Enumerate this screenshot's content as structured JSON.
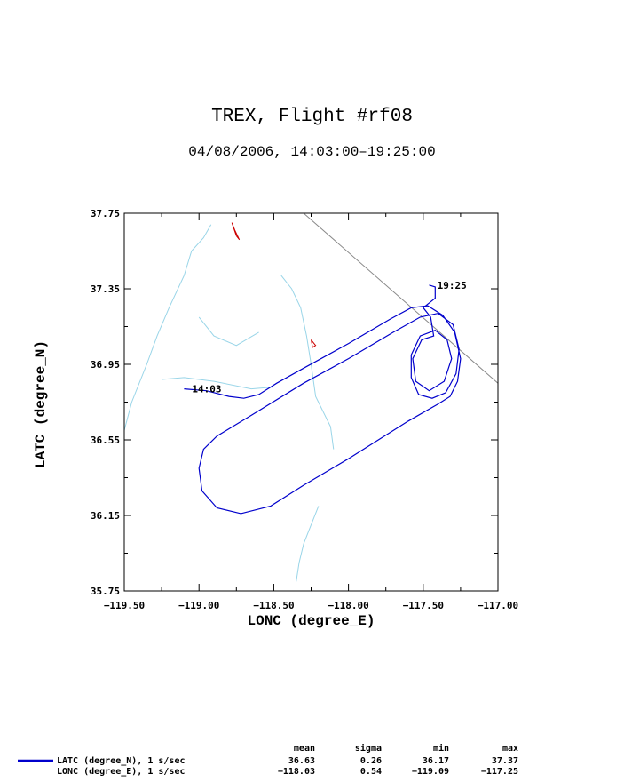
{
  "chart_data": {
    "type": "line",
    "title": "TREX, Flight #rf08",
    "subtitle": "04/08/2006, 14:03:00–19:25:00",
    "xlabel": "LONC (degree_E)",
    "ylabel": "LATC (degree_N)",
    "xlim": [
      -119.5,
      -117.0
    ],
    "ylim": [
      35.75,
      37.75
    ],
    "x_ticks": [
      "−119.50",
      "−119.00",
      "−118.50",
      "−118.00",
      "−117.50",
      "−117.00"
    ],
    "y_ticks": [
      "36.15",
      "36.55",
      "36.95",
      "37.35",
      "37.75"
    ],
    "y_ticks_with_bottom": [
      "35.75",
      "36.15",
      "36.55",
      "36.95",
      "37.35",
      "37.75"
    ],
    "grid": false,
    "series": [
      {
        "name": "LATC (degree_N), 1 s/sec",
        "color": "#0000cc",
        "points": [
          [
            -119.1,
            36.82
          ],
          [
            -118.95,
            36.81
          ],
          [
            -118.8,
            36.78
          ],
          [
            -118.7,
            36.77
          ],
          [
            -118.6,
            36.79
          ],
          [
            -118.48,
            36.85
          ],
          [
            -118.3,
            36.93
          ],
          [
            -118.0,
            37.06
          ],
          [
            -117.72,
            37.19
          ],
          [
            -117.58,
            37.25
          ],
          [
            -117.47,
            37.26
          ],
          [
            -117.37,
            37.21
          ],
          [
            -117.29,
            37.12
          ],
          [
            -117.25,
            36.98
          ],
          [
            -117.27,
            36.86
          ],
          [
            -117.32,
            36.78
          ],
          [
            -117.4,
            36.74
          ],
          [
            -117.6,
            36.65
          ],
          [
            -118.0,
            36.45
          ],
          [
            -118.3,
            36.31
          ],
          [
            -118.52,
            36.2
          ],
          [
            -118.72,
            36.16
          ],
          [
            -118.88,
            36.19
          ],
          [
            -118.98,
            36.28
          ],
          [
            -119.0,
            36.4
          ],
          [
            -118.97,
            36.5
          ],
          [
            -118.88,
            36.57
          ],
          [
            -118.65,
            36.68
          ],
          [
            -118.3,
            36.85
          ],
          [
            -118.0,
            36.98
          ],
          [
            -117.7,
            37.12
          ],
          [
            -117.52,
            37.2
          ],
          [
            -117.4,
            37.22
          ],
          [
            -117.3,
            37.16
          ],
          [
            -117.26,
            37.03
          ],
          [
            -117.28,
            36.9
          ],
          [
            -117.35,
            36.8
          ],
          [
            -117.44,
            36.77
          ],
          [
            -117.53,
            36.79
          ],
          [
            -117.58,
            36.88
          ],
          [
            -117.58,
            37.0
          ],
          [
            -117.52,
            37.1
          ],
          [
            -117.42,
            37.13
          ],
          [
            -117.34,
            37.08
          ],
          [
            -117.31,
            36.98
          ],
          [
            -117.36,
            36.86
          ],
          [
            -117.46,
            36.81
          ],
          [
            -117.55,
            36.86
          ],
          [
            -117.57,
            36.98
          ],
          [
            -117.51,
            37.08
          ],
          [
            -117.43,
            37.1
          ],
          [
            -117.45,
            37.2
          ],
          [
            -117.5,
            37.25
          ],
          [
            -117.42,
            37.3
          ],
          [
            -117.42,
            37.36
          ],
          [
            -117.46,
            37.37
          ]
        ]
      },
      {
        "name": "LONC (degree_E), 1 s/sec",
        "color": "#0000cc",
        "points": []
      }
    ],
    "annotations": [
      {
        "text": "14:03",
        "x": -119.07,
        "y": 36.82
      },
      {
        "text": "19:25",
        "x": -117.43,
        "y": 37.37
      }
    ],
    "background_lines": [
      {
        "kind": "river",
        "color": "#99d5e8",
        "points": [
          [
            -118.92,
            37.69
          ],
          [
            -118.97,
            37.62
          ],
          [
            -119.05,
            37.55
          ],
          [
            -119.1,
            37.42
          ],
          [
            -119.2,
            37.25
          ],
          [
            -119.28,
            37.1
          ],
          [
            -119.35,
            36.95
          ],
          [
            -119.45,
            36.75
          ],
          [
            -119.5,
            36.6
          ]
        ]
      },
      {
        "kind": "river",
        "color": "#99d5e8",
        "points": [
          [
            -119.25,
            36.87
          ],
          [
            -119.1,
            36.88
          ],
          [
            -118.9,
            36.86
          ],
          [
            -118.65,
            36.82
          ],
          [
            -118.5,
            36.83
          ]
        ]
      },
      {
        "kind": "river",
        "color": "#99d5e8",
        "points": [
          [
            -118.45,
            37.42
          ],
          [
            -118.38,
            37.35
          ],
          [
            -118.32,
            37.25
          ],
          [
            -118.28,
            37.1
          ],
          [
            -118.25,
            36.95
          ],
          [
            -118.22,
            36.78
          ],
          [
            -118.12,
            36.62
          ],
          [
            -118.1,
            36.5
          ]
        ]
      },
      {
        "kind": "river",
        "color": "#99d5e8",
        "points": [
          [
            -118.2,
            36.2
          ],
          [
            -118.25,
            36.1
          ],
          [
            -118.3,
            36.0
          ],
          [
            -118.33,
            35.9
          ],
          [
            -118.35,
            35.8
          ]
        ]
      },
      {
        "kind": "river",
        "color": "#99d5e8",
        "points": [
          [
            -119.0,
            37.2
          ],
          [
            -118.9,
            37.1
          ],
          [
            -118.75,
            37.05
          ],
          [
            -118.6,
            37.12
          ]
        ]
      },
      {
        "kind": "road",
        "color": "#888888",
        "points": [
          [
            -118.3,
            37.75
          ],
          [
            -117.0,
            36.85
          ]
        ]
      },
      {
        "kind": "lake",
        "color": "#cc0000",
        "points": [
          [
            -118.78,
            37.7
          ],
          [
            -118.75,
            37.63
          ],
          [
            -118.73,
            37.61
          ],
          [
            -118.76,
            37.66
          ],
          [
            -118.78,
            37.7
          ]
        ]
      },
      {
        "kind": "lake",
        "color": "#cc0000",
        "points": [
          [
            -118.25,
            37.08
          ],
          [
            -118.22,
            37.05
          ],
          [
            -118.24,
            37.04
          ],
          [
            -118.25,
            37.08
          ]
        ]
      }
    ]
  },
  "stats": {
    "headers": [
      "mean",
      "sigma",
      "min",
      "max"
    ],
    "rows": [
      {
        "label": "LATC (degree_N), 1 s/sec",
        "mean": "36.63",
        "sigma": "0.26",
        "min": "36.17",
        "max": "37.37"
      },
      {
        "label": "LONC (degree_E), 1 s/sec",
        "mean": "−118.03",
        "sigma": "0.54",
        "min": "−119.09",
        "max": "−117.25"
      }
    ]
  }
}
